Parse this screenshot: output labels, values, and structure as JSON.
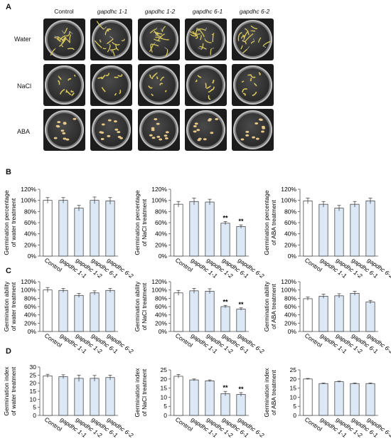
{
  "panels": {
    "a": "A",
    "b": "B",
    "c": "C",
    "d": "D"
  },
  "photo_grid": {
    "columns": [
      "Control",
      "gapdhc 1-1",
      "gapdhc 1-2",
      "gapdhc 6-1",
      "gapdhc 6-2"
    ],
    "rows": [
      "Water",
      "NaCl",
      "ABA"
    ],
    "colors": {
      "dish_bg": "#1c1c1c",
      "seedling": "#d8c75a",
      "seed": "#e6c98a"
    }
  },
  "colors": {
    "control_bar": "#ffffff",
    "mutant_bar": "#dce8f6",
    "bar_edge": "#333333"
  },
  "chart_data": [
    {
      "id": "b1",
      "type": "bar",
      "ylabel": [
        "Germination percentage",
        "of water  treatment"
      ],
      "categories": [
        "Control",
        "gapdhc 1-1",
        "gapdhc 1-2",
        "gapdhc 6-1",
        "gapdhc 6-2"
      ],
      "values": [
        100,
        100,
        86,
        100,
        99
      ],
      "errors": [
        5,
        5,
        5,
        6,
        6
      ],
      "ylim": [
        0,
        120
      ],
      "yticks": [
        "0%",
        "20%",
        "40%",
        "60%",
        "80%",
        "100%",
        "120%"
      ],
      "significance": [
        "",
        "",
        "",
        "",
        ""
      ]
    },
    {
      "id": "b2",
      "type": "bar",
      "ylabel": [
        "Germination percentage",
        "of NaCl treatment"
      ],
      "categories": [
        "Control",
        "gapdhc 1-1",
        "gapdhc 1-2",
        "gapdhc 6-1",
        "gapdhc 6-2"
      ],
      "values": [
        93,
        98,
        97,
        59,
        53
      ],
      "errors": [
        5,
        6,
        5,
        3,
        3
      ],
      "ylim": [
        0,
        120
      ],
      "yticks": [
        "0%",
        "20%",
        "40%",
        "60%",
        "80%",
        "100%",
        "120%"
      ],
      "significance": [
        "",
        "",
        "",
        "**",
        "**"
      ]
    },
    {
      "id": "b3",
      "type": "bar",
      "ylabel": [
        "Germination percentage",
        "of ABA  treatment"
      ],
      "categories": [
        "Control",
        "gapdhc 1-1",
        "gapdhc 1-2",
        "gapdhc 6-1",
        "gapdhc 6-2"
      ],
      "values": [
        99,
        93,
        86,
        93,
        99
      ],
      "errors": [
        5,
        5,
        5,
        5,
        5
      ],
      "ylim": [
        0,
        120
      ],
      "yticks": [
        "0%",
        "20%",
        "40%",
        "60%",
        "80%",
        "100%",
        "120%"
      ],
      "significance": [
        "",
        "",
        "",
        "",
        ""
      ]
    },
    {
      "id": "c1",
      "type": "bar",
      "ylabel": [
        "Germination ability",
        "of water treatment"
      ],
      "categories": [
        "Control",
        "gapdhc 1-1",
        "gapdhc 1-2",
        "gapdhc 6-1",
        "gapdhc 6-2"
      ],
      "values": [
        100,
        99,
        87,
        93,
        99
      ],
      "errors": [
        6,
        5,
        5,
        5,
        5
      ],
      "ylim": [
        0,
        120
      ],
      "yticks": [
        "0%",
        "20%",
        "40%",
        "60%",
        "80%",
        "100%",
        "120%"
      ],
      "significance": [
        "",
        "",
        "",
        "",
        ""
      ]
    },
    {
      "id": "c2",
      "type": "bar",
      "ylabel": [
        "Germination ability",
        "of NaCl treatment"
      ],
      "categories": [
        "Control",
        "gapdhc 1-1",
        "gapdhc 1-2",
        "gapdhc 6-1",
        "gapdhc 6-2"
      ],
      "values": [
        93,
        98,
        97,
        60,
        54
      ],
      "errors": [
        6,
        6,
        6,
        3,
        3
      ],
      "ylim": [
        0,
        120
      ],
      "yticks": [
        "0%",
        "20%",
        "40%",
        "60%",
        "80%",
        "100%",
        "120%"
      ],
      "significance": [
        "",
        "",
        "",
        "**",
        "**"
      ]
    },
    {
      "id": "c3",
      "type": "bar",
      "ylabel": [
        "Germination ability",
        "of ABA treatment"
      ],
      "categories": [
        "Control",
        "gapdhc 1-1",
        "gapdhc 1-2",
        "gapdhc 6-1",
        "gapdhc 6-2"
      ],
      "values": [
        79,
        85,
        86,
        92,
        71
      ],
      "errors": [
        4,
        5,
        5,
        5,
        4
      ],
      "ylim": [
        0,
        120
      ],
      "yticks": [
        "0%",
        "20%",
        "40%",
        "60%",
        "80%",
        "100%",
        "120%"
      ],
      "significance": [
        "",
        "",
        "",
        "",
        ""
      ]
    },
    {
      "id": "d1",
      "type": "bar",
      "ylabel": [
        "Germination index",
        "of water treatment"
      ],
      "categories": [
        "Control",
        "gapdhc 1-1",
        "gapdhc 1-2",
        "gapdhc 6-1",
        "gapdhc 6-2"
      ],
      "values": [
        24.5,
        24,
        23,
        23,
        23.5
      ],
      "errors": [
        1,
        1.2,
        2,
        1.8,
        1.5
      ],
      "ylim": [
        0,
        30
      ],
      "yticks": [
        "0",
        "5",
        "10",
        "15",
        "20",
        "25",
        "30"
      ],
      "significance": [
        "",
        "",
        "",
        "",
        ""
      ]
    },
    {
      "id": "d2",
      "type": "bar",
      "ylabel": [
        "Germination index",
        "of NaCl treatment"
      ],
      "categories": [
        "Control",
        "gapdhc 1-1",
        "gapdhc 1-2",
        "gapdhc 6-1",
        "gapdhc 6-2"
      ],
      "values": [
        21.5,
        19.5,
        19,
        12,
        11.5
      ],
      "errors": [
        1,
        0.5,
        0.5,
        1.2,
        1
      ],
      "ylim": [
        0,
        25
      ],
      "yticks": [
        "0",
        "5",
        "10",
        "15",
        "20",
        "25"
      ],
      "significance": [
        "",
        "",
        "",
        "**",
        "**"
      ]
    },
    {
      "id": "d3",
      "type": "bar",
      "ylabel": [
        "Germination index",
        "of ABA treatment"
      ],
      "categories": [
        "Control",
        "gapdhc 1-1",
        "gapdhc 1-2",
        "gapdhc 6-1",
        "gapdhc 6-2"
      ],
      "values": [
        20,
        17.5,
        18.5,
        17.5,
        17.5
      ],
      "errors": [
        0.3,
        0.3,
        0.3,
        0.3,
        0.3
      ],
      "ylim": [
        0,
        25
      ],
      "yticks": [
        "0",
        "5",
        "10",
        "15",
        "20",
        "25"
      ],
      "significance": [
        "",
        "",
        "",
        "",
        ""
      ]
    }
  ]
}
